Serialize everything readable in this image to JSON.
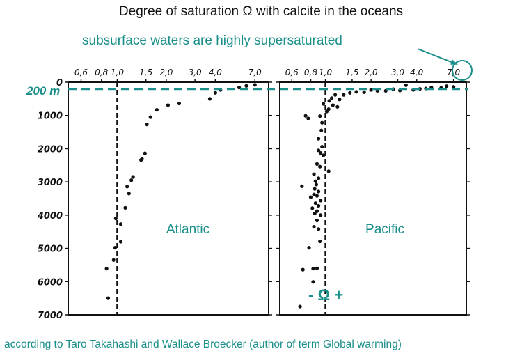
{
  "title": "Degree of saturation Ω with calcite in the oceans",
  "callout": "subsurface waters are highly supersaturated",
  "reference_line_label": "200 m",
  "omega_marker": "- Ω +",
  "footer": "according to Taro Takahashi and Wallace Broecker (author of term Global warming)",
  "colors": {
    "teal": "#1a8f8a",
    "ink": "#111111"
  },
  "chart_data": [
    {
      "type": "scatter",
      "panel_label": "Atlantic",
      "x_scale": "log",
      "x_ticks": [
        "0,6",
        "0,8",
        "1,0",
        "1,5",
        "2,0",
        "3,0",
        "4,0",
        "7,0"
      ],
      "x_tick_values": [
        0.6,
        0.8,
        1.0,
        1.5,
        2.0,
        3.0,
        4.0,
        7.0
      ],
      "xlim": [
        0.5,
        8.5
      ],
      "y_ticks": [
        "0",
        "1000",
        "2000",
        "3000",
        "4000",
        "5000",
        "6000",
        "7000"
      ],
      "ylim": [
        0,
        7000
      ],
      "y_inverted": true,
      "saturation_line": 1.0,
      "points": [
        [
          7.0,
          80
        ],
        [
          6.2,
          110
        ],
        [
          5.6,
          160
        ],
        [
          4.3,
          230
        ],
        [
          4.0,
          320
        ],
        [
          3.7,
          500
        ],
        [
          2.4,
          640
        ],
        [
          2.05,
          690
        ],
        [
          1.75,
          830
        ],
        [
          1.6,
          1050
        ],
        [
          1.52,
          1270
        ],
        [
          1.48,
          2140
        ],
        [
          1.42,
          2310
        ],
        [
          1.4,
          2340
        ],
        [
          1.25,
          2850
        ],
        [
          1.22,
          2950
        ],
        [
          1.15,
          3140
        ],
        [
          1.18,
          3350
        ],
        [
          1.12,
          3780
        ],
        [
          0.98,
          4100
        ],
        [
          1.05,
          4270
        ],
        [
          1.05,
          4800
        ],
        [
          0.97,
          4980
        ],
        [
          0.95,
          5350
        ],
        [
          0.86,
          5610
        ],
        [
          0.88,
          6500
        ]
      ]
    },
    {
      "type": "scatter",
      "panel_label": "Pacific",
      "x_scale": "log",
      "x_ticks": [
        "0,6",
        "0,8",
        "1,0",
        "1,5",
        "2,0",
        "3,0",
        "4,0",
        "7,0"
      ],
      "x_tick_values": [
        0.6,
        0.8,
        1.0,
        1.5,
        2.0,
        3.0,
        4.0,
        7.0
      ],
      "xlim": [
        0.5,
        8.5
      ],
      "ylim": [
        0,
        7000
      ],
      "y_inverted": true,
      "saturation_line": 1.0,
      "highlighted_tick": "7,0",
      "points": [
        [
          7.0,
          140
        ],
        [
          6.3,
          120
        ],
        [
          5.8,
          170
        ],
        [
          5.0,
          160
        ],
        [
          4.6,
          190
        ],
        [
          4.2,
          200
        ],
        [
          3.8,
          230
        ],
        [
          3.4,
          90
        ],
        [
          3.1,
          250
        ],
        [
          2.8,
          210
        ],
        [
          2.5,
          260
        ],
        [
          2.2,
          260
        ],
        [
          2.0,
          230
        ],
        [
          1.8,
          300
        ],
        [
          1.6,
          290
        ],
        [
          1.45,
          320
        ],
        [
          1.32,
          380
        ],
        [
          1.24,
          520
        ],
        [
          1.16,
          380
        ],
        [
          1.1,
          480
        ],
        [
          1.06,
          560
        ],
        [
          1.12,
          690
        ],
        [
          1.2,
          740
        ],
        [
          1.05,
          810
        ],
        [
          1.02,
          880
        ],
        [
          0.97,
          650
        ],
        [
          0.74,
          1010
        ],
        [
          0.77,
          1090
        ],
        [
          0.92,
          1020
        ],
        [
          0.95,
          1220
        ],
        [
          0.94,
          1450
        ],
        [
          0.9,
          1700
        ],
        [
          0.95,
          1940
        ],
        [
          0.9,
          2050
        ],
        [
          0.93,
          2130
        ],
        [
          0.97,
          2200
        ],
        [
          0.88,
          2460
        ],
        [
          1.05,
          2680
        ],
        [
          0.92,
          2540
        ],
        [
          0.84,
          2770
        ],
        [
          0.9,
          2890
        ],
        [
          0.86,
          2980
        ],
        [
          0.87,
          3080
        ],
        [
          0.7,
          3130
        ],
        [
          0.85,
          3210
        ],
        [
          0.9,
          3290
        ],
        [
          0.84,
          3380
        ],
        [
          0.88,
          3420
        ],
        [
          0.8,
          3460
        ],
        [
          0.93,
          3560
        ],
        [
          0.86,
          3640
        ],
        [
          0.9,
          3720
        ],
        [
          0.82,
          3790
        ],
        [
          0.88,
          3880
        ],
        [
          0.85,
          3950
        ],
        [
          0.93,
          4000
        ],
        [
          0.88,
          4160
        ],
        [
          0.84,
          4350
        ],
        [
          0.9,
          4420
        ],
        [
          0.92,
          4790
        ],
        [
          0.78,
          4980
        ],
        [
          0.83,
          5610
        ],
        [
          0.88,
          5600
        ],
        [
          0.71,
          5640
        ],
        [
          0.83,
          6010
        ],
        [
          0.68,
          6750
        ]
      ]
    }
  ]
}
